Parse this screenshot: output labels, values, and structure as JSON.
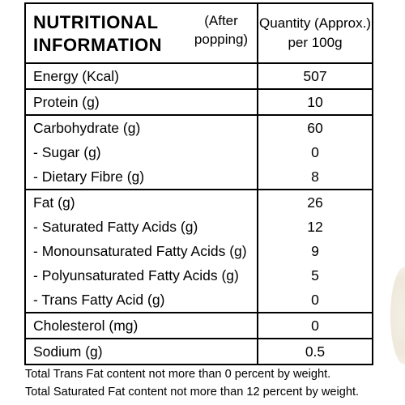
{
  "header": {
    "title_line1": "NUTRITIONAL",
    "title_line2": "INFORMATION",
    "note_line1": "(After",
    "note_line2": "popping)",
    "quantity_line1": "Quantity (Approx.)",
    "quantity_line2": "per 100g"
  },
  "groups": [
    [
      {
        "label": "Energy (Kcal)",
        "value": "507"
      }
    ],
    [
      {
        "label": "Protein (g)",
        "value": "10"
      }
    ],
    [
      {
        "label": "Carbohydrate (g)",
        "value": "60"
      },
      {
        "label": "- Sugar (g)",
        "value": "0"
      },
      {
        "label": "- Dietary Fibre (g)",
        "value": "8"
      }
    ],
    [
      {
        "label": "Fat (g)",
        "value": "26"
      },
      {
        "label": "- Saturated Fatty Acids (g)",
        "value": "12"
      },
      {
        "label": "- Monounsaturated Fatty Acids (g)",
        "value": "9"
      },
      {
        "label": "- Polyunsaturated Fatty Acids (g)",
        "value": "5"
      },
      {
        "label": "- Trans Fatty Acid (g)",
        "value": "0"
      }
    ],
    [
      {
        "label": "Cholesterol (mg)",
        "value": "0"
      }
    ],
    [
      {
        "label": "Sodium (g)",
        "value": "0.5"
      }
    ]
  ],
  "footnotes": {
    "line1": "Total Trans Fat content not more than 0 percent by weight.",
    "line2": "Total Saturated Fat content not more than 12 percent by weight."
  }
}
